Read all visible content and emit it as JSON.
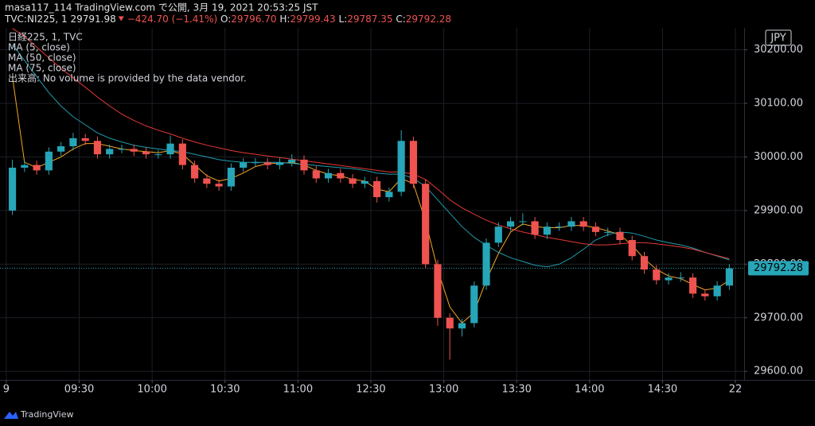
{
  "header": {
    "title": "masa117_114 TradingView.com で公開, 3月 19, 2021 20:53:25 JST",
    "symbol": "TVC:NI225, 1",
    "price": "29791.98",
    "change": "−424.70 (−1.41%)",
    "o_label": "O:",
    "o": "29796.70",
    "h_label": "H:",
    "h": "29799.43",
    "l_label": "L:",
    "l": "29787.35",
    "c_label": "C:",
    "c": "29792.28"
  },
  "footer": "TradingView",
  "chart_data": {
    "type": "candlestick",
    "grid": true,
    "legend": "top-left",
    "currency": "JPY",
    "last_price": 29792.28,
    "last_price_color": "#26a6b8",
    "note": "出来高: No volume is provided by the data vendor.",
    "xlim": [
      -2.6,
      303.6
    ],
    "xticks": [
      {
        "value": 0,
        "label": "9"
      },
      {
        "value": 30,
        "label": "09:30"
      },
      {
        "value": 60,
        "label": "10:00"
      },
      {
        "value": 90,
        "label": "10:30"
      },
      {
        "value": 120,
        "label": "11:00"
      },
      {
        "value": 150,
        "label": "12:30"
      },
      {
        "value": 180,
        "label": "13:00"
      },
      {
        "value": 210,
        "label": "13:30"
      },
      {
        "value": 240,
        "label": "14:00"
      },
      {
        "value": 270,
        "label": "14:30"
      },
      {
        "value": 300,
        "label": "22"
      }
    ],
    "ylim": [
      29584,
      30241
    ],
    "yticks": [
      {
        "value": 29600,
        "label": "29600.00"
      },
      {
        "value": 29700,
        "label": "29700.00"
      },
      {
        "value": 29800,
        "label": "29800.00"
      },
      {
        "value": 29900,
        "label": "29900.00"
      },
      {
        "value": 30000,
        "label": "30000.00"
      },
      {
        "value": 30100,
        "label": "30100.00"
      },
      {
        "value": 30200,
        "label": "30200.00"
      }
    ],
    "candles": {
      "name": "日経225, 1, TVC",
      "up_color": "#26a6b8",
      "down_color": "#ef5350",
      "x": [
        2.5,
        7.5,
        12.5,
        17.5,
        22.5,
        27.5,
        32.5,
        37.5,
        42.5,
        47.5,
        52.5,
        57.5,
        62.5,
        67.5,
        72.5,
        77.5,
        82.5,
        87.5,
        92.5,
        97.5,
        102.5,
        107.5,
        112.5,
        117.5,
        122.5,
        127.5,
        132.5,
        137.5,
        142.5,
        147.5,
        152.5,
        157.5,
        162.5,
        167.5,
        172.5,
        177.5,
        182.5,
        187.5,
        192.5,
        197.5,
        202.5,
        207.5,
        212.5,
        217.5,
        222.5,
        227.5,
        232.5,
        237.5,
        242.5,
        247.5,
        252.5,
        257.5,
        262.5,
        267.5,
        272.5,
        277.5,
        282.5,
        287.5,
        292.5,
        297.5
      ],
      "open": [
        29900,
        29980,
        29985,
        29975,
        30010,
        30020,
        30035,
        30030,
        30005,
        30015,
        30015,
        30010,
        30005,
        30005,
        30025,
        29985,
        29960,
        29950,
        29945,
        29980,
        29990,
        29990,
        29985,
        29990,
        29995,
        29975,
        29960,
        29970,
        29960,
        29950,
        29955,
        29925,
        29935,
        30030,
        29950,
        29800,
        29700,
        29680,
        29690,
        29760,
        29840,
        29870,
        29880,
        29880,
        29855,
        29870,
        29870,
        29880,
        29870,
        29860,
        29860,
        29845,
        29815,
        29790,
        29770,
        29775,
        29775,
        29745,
        29740,
        29760
      ],
      "high": [
        29995,
        29993,
        29993,
        30018,
        30028,
        30045,
        30043,
        30038,
        30023,
        30023,
        30023,
        30018,
        30013,
        30040,
        30033,
        29993,
        29968,
        29958,
        29988,
        29998,
        29998,
        29998,
        29998,
        30005,
        30003,
        29983,
        29978,
        29978,
        29968,
        29963,
        29963,
        29943,
        30050,
        30038,
        29958,
        29808,
        29708,
        29698,
        29768,
        29848,
        29878,
        29888,
        29895,
        29888,
        29878,
        29878,
        29888,
        29888,
        29878,
        29868,
        29868,
        29853,
        29823,
        29798,
        29783,
        29785,
        29783,
        29753,
        29768,
        29800
      ],
      "low": [
        29892,
        29972,
        29967,
        29967,
        30002,
        30012,
        30022,
        29997,
        29997,
        30007,
        30002,
        29997,
        29997,
        29997,
        29977,
        29952,
        29942,
        29937,
        29937,
        29972,
        29982,
        29977,
        29977,
        29982,
        29967,
        29952,
        29952,
        29952,
        29942,
        29942,
        29915,
        29917,
        29927,
        29942,
        29792,
        29685,
        29622,
        29665,
        29682,
        29752,
        29832,
        29862,
        29872,
        29847,
        29847,
        29862,
        29862,
        29862,
        29852,
        29852,
        29837,
        29807,
        29782,
        29762,
        29762,
        29767,
        29737,
        29732,
        29732,
        29752
      ],
      "close": [
        29980,
        29985,
        29975,
        30010,
        30020,
        30035,
        30030,
        30005,
        30015,
        30015,
        30010,
        30005,
        30005,
        30025,
        29985,
        29960,
        29950,
        29945,
        29980,
        29990,
        29990,
        29985,
        29990,
        29995,
        29975,
        29960,
        29970,
        29960,
        29950,
        29955,
        29925,
        29935,
        30030,
        29950,
        29800,
        29700,
        29680,
        29690,
        29760,
        29840,
        29870,
        29880,
        29880,
        29855,
        29870,
        29870,
        29880,
        29870,
        29860,
        29860,
        29845,
        29815,
        29790,
        29770,
        29775,
        29775,
        29745,
        29740,
        29760,
        29792
      ]
    },
    "series": [
      {
        "name": "MA (5, close)",
        "color": "#f5a623",
        "values": [
          30150,
          29990,
          29980,
          29990,
          30000,
          30015,
          30025,
          30025,
          30020,
          30015,
          30012,
          30010,
          30008,
          30012,
          30005,
          29985,
          29965,
          29955,
          29960,
          29970,
          29982,
          29988,
          29988,
          29990,
          29985,
          29975,
          29968,
          29965,
          29958,
          29955,
          29940,
          29935,
          29960,
          29950,
          29880,
          29790,
          29720,
          29690,
          29710,
          29770,
          29820,
          29860,
          29875,
          29870,
          29868,
          29868,
          29872,
          29872,
          29868,
          29862,
          29855,
          29835,
          29810,
          29790,
          29778,
          29773,
          29762,
          29752,
          29755,
          29770
        ]
      },
      {
        "name": "MA (50, close)",
        "color": "#1f9cad",
        "values": [
          30210,
          30180,
          30150,
          30120,
          30095,
          30075,
          30060,
          30045,
          30035,
          30028,
          30022,
          30018,
          30015,
          30012,
          30010,
          30005,
          30000,
          29995,
          29992,
          29990,
          29990,
          29990,
          29990,
          29988,
          29986,
          29984,
          29982,
          29980,
          29978,
          29975,
          29970,
          29968,
          29968,
          29960,
          29945,
          29920,
          29895,
          29870,
          29850,
          29835,
          29822,
          29812,
          29805,
          29798,
          29795,
          29800,
          29812,
          29828,
          29845,
          29855,
          29860,
          29858,
          29852,
          29845,
          29840,
          29836,
          29830,
          29822,
          29815,
          29808
        ]
      },
      {
        "name": "MA (75, close)",
        "color": "#e53935",
        "values": [
          30240,
          30225,
          30205,
          30185,
          30165,
          30148,
          30130,
          30112,
          30095,
          30080,
          30068,
          30058,
          30050,
          30043,
          30035,
          30028,
          30022,
          30017,
          30012,
          30008,
          30005,
          30002,
          29999,
          29996,
          29993,
          29990,
          29987,
          29984,
          29981,
          29978,
          29975,
          29972,
          29972,
          29968,
          29958,
          29940,
          29920,
          29905,
          29893,
          29882,
          29873,
          29866,
          29860,
          29855,
          29850,
          29846,
          29842,
          29838,
          29836,
          29836,
          29838,
          29840,
          29840,
          29838,
          29835,
          29832,
          29828,
          29822,
          29816,
          29810
        ]
      }
    ]
  }
}
